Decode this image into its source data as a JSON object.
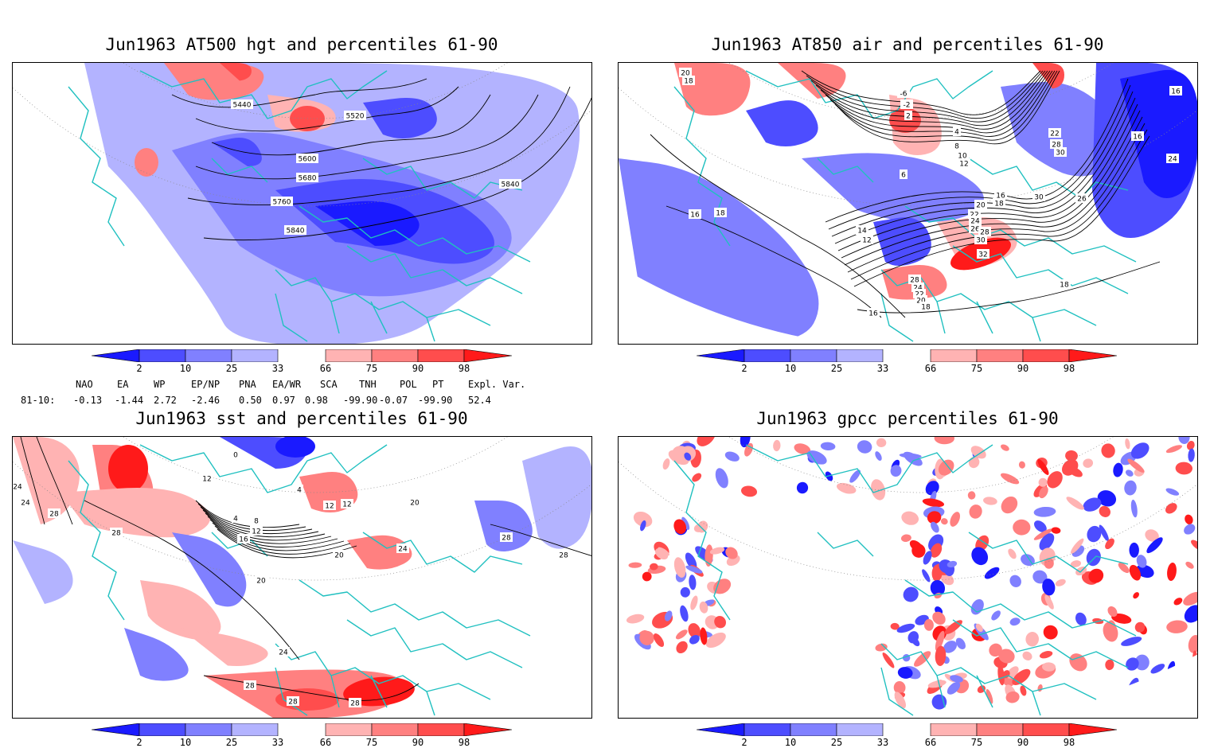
{
  "panels": [
    {
      "id": "p1",
      "title": "Jun1963 AT500 hgt and percentiles 61-90",
      "contour_labels": [
        "5440",
        "5520",
        "5600",
        "5680",
        "5760",
        "5840",
        "5840"
      ]
    },
    {
      "id": "p2",
      "title": "Jun1963 AT850 air and percentiles 61-90",
      "contour_labels": [
        "20",
        "18",
        "-6",
        "-2",
        "2",
        "4",
        "8",
        "10",
        "12",
        "6",
        "16",
        "18",
        "20",
        "22",
        "24",
        "26",
        "28",
        "30",
        "32",
        "14",
        "12",
        "28",
        "24",
        "22",
        "20",
        "18",
        "16",
        "18",
        "18",
        "16",
        "16",
        "24",
        "26",
        "30",
        "22",
        "28",
        "30",
        "16"
      ]
    },
    {
      "id": "p3",
      "title": "Jun1963 sst and percentiles 61-90",
      "contour_labels": [
        "24",
        "24",
        "28",
        "28",
        "12",
        "0",
        "4",
        "8",
        "12",
        "16",
        "20",
        "24",
        "28",
        "28",
        "28",
        "20",
        "24",
        "20",
        "28",
        "28",
        "4",
        "12",
        "12"
      ]
    },
    {
      "id": "p4",
      "title": "Jun1963 gpcc percentiles 61-90",
      "contour_labels": []
    }
  ],
  "colorbar": {
    "labels": [
      "2",
      "10",
      "25",
      "33",
      "66",
      "75",
      "90",
      "98"
    ],
    "colors": [
      "#1a1aff",
      "#4d4dff",
      "#8080ff",
      "#b3b3ff",
      "#ffb3b3",
      "#ff8080",
      "#ff4d4d",
      "#ff1a1a"
    ]
  },
  "indices": {
    "row_label": "81-10:",
    "headers": [
      "NAO",
      "EA",
      "WP",
      "EP/NP",
      "PNA",
      "EA/WR",
      "SCA",
      "TNH",
      "POL",
      "PT",
      "Expl. Var."
    ],
    "values": [
      "-0.13",
      "-1.44",
      "2.72",
      "-2.46",
      "0.50",
      "0.97",
      "0.98",
      "-99.90",
      "-0.07",
      "-99.90",
      "52.4"
    ]
  },
  "colors": {
    "coast": "#20c0c0",
    "contour": "#000000",
    "grid": "#888888"
  }
}
